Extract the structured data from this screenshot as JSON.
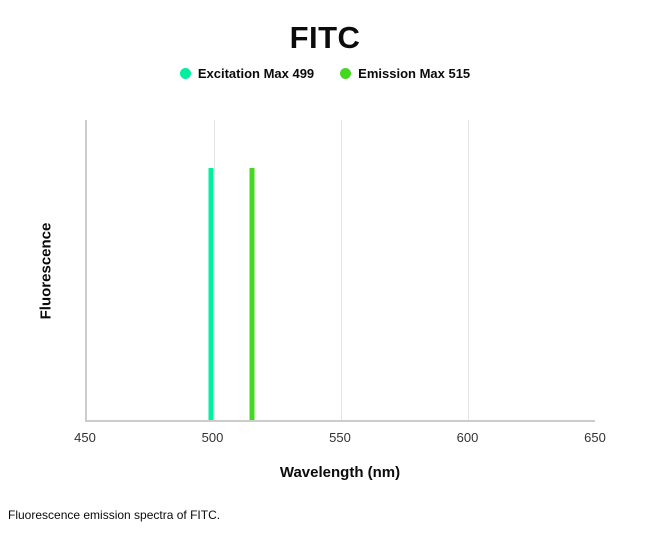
{
  "page": {
    "caption": "Fluorescence emission spectra of FITC."
  },
  "chart_data": {
    "type": "bar",
    "title": "FITC",
    "xlabel": "Wavelength (nm)",
    "ylabel": "Fluorescence",
    "x_range": [
      450,
      650
    ],
    "x_ticks": [
      450,
      500,
      550,
      600,
      650
    ],
    "grid": "faint vertical gridlines at interior x ticks",
    "legend_position": "top-center",
    "axis_color": "#cccccc",
    "gridline_color": "#e4e4e4",
    "series": [
      {
        "key": "excitation",
        "name": "Excitation Max 499",
        "wavelength": 499,
        "value_norm": 0.84,
        "color": "#00efa0"
      },
      {
        "key": "emission",
        "name": "Emission Max 515",
        "wavelength": 515,
        "value_norm": 0.84,
        "color": "#45d820"
      }
    ]
  }
}
